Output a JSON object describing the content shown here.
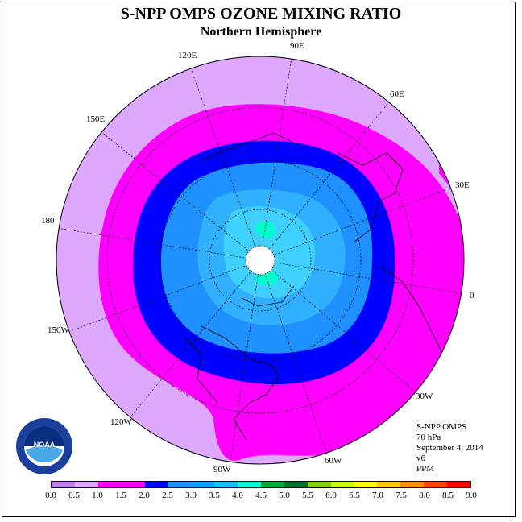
{
  "title": "S-NPP OMPS OZONE MIXING RATIO",
  "subtitle": "Northern Hemisphere",
  "longitude_labels": [
    "90E",
    "60E",
    "30E",
    "0",
    "30W",
    "60W",
    "90W",
    "120W",
    "150W",
    "180",
    "150E",
    "120E"
  ],
  "info": {
    "instrument": "S-NPP OMPS",
    "pressure": "70 hPa",
    "date": "September 4, 2014",
    "version": "v6",
    "units": "PPM"
  },
  "colorbar": {
    "ticks": [
      "0.0",
      "0.5",
      "1.0",
      "1.5",
      "2.0",
      "2.5",
      "3.0",
      "3.5",
      "4.0",
      "4.5",
      "5.0",
      "5.5",
      "6.0",
      "6.5",
      "7.0",
      "7.5",
      "8.0",
      "8.5",
      "9.0"
    ],
    "colors": [
      "#c080f0",
      "#dfa8ff",
      "#ff00ff",
      "#ff00ff",
      "#0000ff",
      "#1e90ff",
      "#0aa0ff",
      "#10c0ff",
      "#00ffcc",
      "#00aa40",
      "#007030",
      "#88d000",
      "#c8ff00",
      "#ffff00",
      "#ffc800",
      "#ff9000",
      "#ff4000",
      "#ff0000",
      "#804020"
    ]
  },
  "map_colors": {
    "outer": "#dfa8ff",
    "ring_magenta": "#ff00ff",
    "ring_blue": "#0000ff",
    "mid_blue": "#1e90ff",
    "inner_blue": "#30b0ff",
    "core": "#40d0ff",
    "hotspot": "#00ffcc",
    "pole": "#ffffff"
  },
  "logo_text": "NOAA"
}
